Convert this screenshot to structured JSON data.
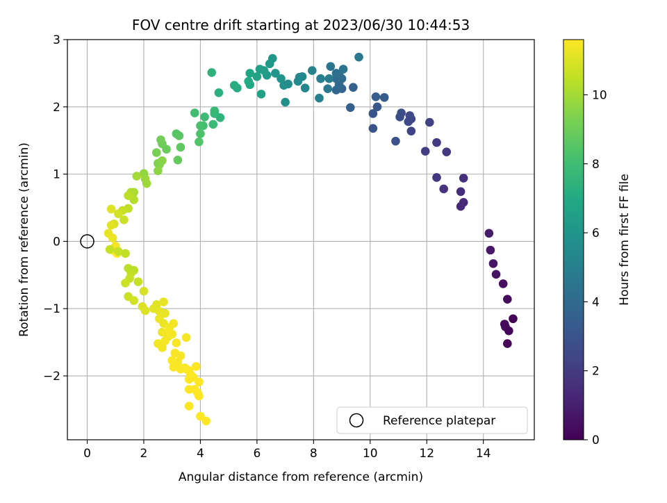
{
  "chart_data": {
    "type": "scatter",
    "title": "FOV centre drift starting at 2023/06/30 10:44:53",
    "xlabel": "Angular distance from reference (arcmin)",
    "ylabel": "Rotation from reference (arcmin)",
    "xlim": [
      -0.7,
      15.8
    ],
    "ylim": [
      -2.95,
      3.0
    ],
    "xticks": [
      0,
      2,
      4,
      6,
      8,
      10,
      12,
      14
    ],
    "yticks": [
      -2,
      -1,
      0,
      1,
      2,
      3
    ],
    "grid": true,
    "legend": {
      "placement": "bottom-right",
      "entries": [
        "Reference platepar"
      ]
    },
    "reference_point": {
      "x": 0,
      "y": 0
    },
    "colorbar": {
      "label": "Hours from first FF file",
      "range": [
        0,
        11.6
      ],
      "ticks": [
        0,
        2,
        4,
        6,
        8,
        10
      ],
      "colormap": "viridis"
    },
    "points": [
      [
        15.05,
        -1.15,
        0.05
      ],
      [
        14.9,
        -1.33,
        0.1
      ],
      [
        14.85,
        -1.52,
        0.15
      ],
      [
        14.78,
        -1.27,
        0.2
      ],
      [
        14.75,
        -1.23,
        0.25
      ],
      [
        14.85,
        -0.86,
        0.35
      ],
      [
        14.7,
        -0.63,
        0.45
      ],
      [
        14.45,
        -0.49,
        0.55
      ],
      [
        14.35,
        -0.33,
        0.65
      ],
      [
        14.25,
        -0.13,
        0.75
      ],
      [
        14.2,
        0.12,
        0.85
      ],
      [
        13.3,
        0.58,
        1.3
      ],
      [
        13.2,
        0.52,
        1.4
      ],
      [
        13.2,
        0.74,
        1.5
      ],
      [
        13.3,
        0.94,
        1.6
      ],
      [
        12.6,
        0.78,
        1.7
      ],
      [
        12.35,
        0.95,
        1.8
      ],
      [
        12.7,
        1.33,
        1.9
      ],
      [
        12.35,
        1.47,
        2.0
      ],
      [
        11.95,
        1.34,
        2.1
      ],
      [
        12.1,
        1.77,
        2.2
      ],
      [
        11.45,
        1.64,
        2.3
      ],
      [
        11.45,
        1.82,
        2.4
      ],
      [
        11.35,
        1.78,
        2.5
      ],
      [
        11.4,
        1.87,
        2.6
      ],
      [
        11.05,
        1.85,
        2.7
      ],
      [
        11.1,
        1.91,
        2.8
      ],
      [
        10.9,
        1.49,
        2.9
      ],
      [
        10.1,
        1.68,
        3.0
      ],
      [
        10.1,
        1.9,
        3.1
      ],
      [
        10.25,
        2.0,
        3.2
      ],
      [
        10.5,
        2.14,
        3.3
      ],
      [
        10.2,
        2.15,
        3.4
      ],
      [
        9.3,
        1.99,
        3.5
      ],
      [
        9.4,
        2.29,
        3.6
      ],
      [
        9.0,
        2.27,
        3.7
      ],
      [
        8.8,
        2.25,
        3.8
      ],
      [
        8.9,
        2.33,
        3.9
      ],
      [
        8.8,
        2.42,
        4.0
      ],
      [
        9.0,
        2.42,
        4.1
      ],
      [
        8.9,
        2.48,
        4.2
      ],
      [
        8.8,
        2.5,
        4.3
      ],
      [
        9.05,
        2.56,
        4.4
      ],
      [
        8.6,
        2.6,
        4.5
      ],
      [
        9.6,
        2.74,
        4.6
      ],
      [
        8.5,
        2.27,
        4.7
      ],
      [
        8.55,
        2.42,
        4.8
      ],
      [
        8.25,
        2.42,
        4.9
      ],
      [
        8.2,
        2.13,
        5.0
      ],
      [
        7.95,
        2.54,
        5.1
      ],
      [
        7.7,
        2.28,
        5.2
      ],
      [
        7.6,
        2.45,
        5.3
      ],
      [
        7.5,
        2.44,
        5.4
      ],
      [
        7.45,
        2.38,
        5.5
      ],
      [
        7.1,
        2.34,
        5.6
      ],
      [
        6.95,
        2.32,
        5.7
      ],
      [
        7.0,
        2.07,
        5.8
      ],
      [
        6.85,
        2.42,
        5.9
      ],
      [
        6.65,
        2.5,
        6.0
      ],
      [
        6.55,
        2.72,
        6.1
      ],
      [
        6.45,
        2.64,
        6.2
      ],
      [
        6.35,
        2.47,
        6.3
      ],
      [
        6.25,
        2.54,
        6.4
      ],
      [
        6.1,
        2.56,
        6.5
      ],
      [
        6.15,
        2.19,
        6.6
      ],
      [
        6.0,
        2.45,
        6.7
      ],
      [
        5.75,
        2.5,
        6.8
      ],
      [
        5.75,
        2.33,
        6.9
      ],
      [
        5.7,
        2.38,
        7.0
      ],
      [
        5.3,
        2.28,
        7.1
      ],
      [
        5.2,
        2.32,
        7.2
      ],
      [
        4.65,
        2.21,
        7.3
      ],
      [
        4.4,
        2.51,
        7.4
      ],
      [
        4.7,
        1.84,
        7.5
      ],
      [
        4.5,
        1.9,
        7.6
      ],
      [
        4.5,
        1.94,
        7.7
      ],
      [
        4.45,
        1.74,
        7.8
      ],
      [
        4.15,
        1.85,
        7.9
      ],
      [
        3.8,
        1.91,
        8.0
      ],
      [
        4.1,
        1.72,
        8.1
      ],
      [
        4.0,
        1.72,
        8.2
      ],
      [
        4.0,
        1.6,
        8.3
      ],
      [
        3.95,
        1.48,
        8.4
      ],
      [
        3.15,
        1.6,
        8.5
      ],
      [
        3.25,
        1.57,
        8.6
      ],
      [
        3.3,
        1.4,
        8.7
      ],
      [
        3.2,
        1.21,
        8.8
      ],
      [
        2.8,
        1.37,
        8.9
      ],
      [
        2.65,
        1.45,
        9.0
      ],
      [
        2.6,
        1.51,
        9.1
      ],
      [
        2.45,
        1.32,
        9.2
      ],
      [
        2.5,
        1.16,
        9.3
      ],
      [
        2.55,
        1.14,
        9.4
      ],
      [
        2.65,
        1.2,
        9.5
      ],
      [
        2.5,
        1.05,
        9.6
      ],
      [
        2.0,
        1.01,
        9.7
      ],
      [
        2.05,
        0.93,
        9.8
      ],
      [
        2.1,
        0.86,
        9.9
      ],
      [
        1.75,
        0.97,
        10.0
      ],
      [
        1.65,
        0.73,
        10.1
      ],
      [
        1.55,
        0.73,
        10.2
      ],
      [
        1.65,
        0.62,
        10.3
      ],
      [
        1.45,
        0.68,
        10.4
      ],
      [
        1.45,
        0.49,
        10.5
      ],
      [
        1.25,
        0.46,
        10.6
      ],
      [
        1.3,
        0.32,
        10.7
      ],
      [
        1.1,
        0.41,
        10.8
      ],
      [
        0.95,
        0.26,
        10.9
      ],
      [
        0.85,
        0.48,
        11.0
      ],
      [
        0.85,
        0.24,
        11.1
      ],
      [
        0.75,
        0.12,
        11.2
      ],
      [
        0.9,
        0.05,
        11.3
      ],
      [
        1.0,
        -0.07,
        11.4
      ],
      [
        0.9,
        -0.13,
        11.5
      ],
      [
        1.05,
        -0.18,
        11.6
      ],
      [
        0.8,
        -0.12,
        10.6
      ],
      [
        1.1,
        -0.15,
        10.6
      ],
      [
        1.35,
        -0.18,
        10.5
      ],
      [
        1.45,
        -0.4,
        10.4
      ],
      [
        1.65,
        -0.43,
        10.4
      ],
      [
        1.55,
        -0.47,
        10.5
      ],
      [
        1.5,
        -0.55,
        10.6
      ],
      [
        1.35,
        -0.62,
        10.7
      ],
      [
        1.45,
        -0.82,
        10.7
      ],
      [
        1.65,
        -0.88,
        10.8
      ],
      [
        1.8,
        -0.6,
        10.6
      ],
      [
        2.0,
        -0.74,
        10.9
      ],
      [
        1.95,
        -0.97,
        11.0
      ],
      [
        2.05,
        -1.03,
        11.0
      ],
      [
        2.35,
        -1.0,
        11.1
      ],
      [
        2.45,
        -0.94,
        11.1
      ],
      [
        2.55,
        -1.04,
        11.2
      ],
      [
        2.7,
        -0.9,
        11.2
      ],
      [
        2.75,
        -1.07,
        11.2
      ],
      [
        2.7,
        -1.22,
        11.3
      ],
      [
        2.55,
        -1.15,
        11.3
      ],
      [
        2.65,
        -1.35,
        11.3
      ],
      [
        2.8,
        -1.36,
        11.4
      ],
      [
        2.85,
        -1.42,
        11.4
      ],
      [
        2.9,
        -1.28,
        11.4
      ],
      [
        3.0,
        -1.38,
        11.4
      ],
      [
        3.05,
        -1.22,
        11.45
      ],
      [
        2.5,
        -1.52,
        11.4
      ],
      [
        2.65,
        -1.58,
        11.4
      ],
      [
        2.75,
        -1.48,
        11.45
      ],
      [
        3.15,
        -1.51,
        11.5
      ],
      [
        3.5,
        -1.43,
        11.5
      ],
      [
        3.1,
        -1.66,
        11.5
      ],
      [
        3.3,
        -1.7,
        11.5
      ],
      [
        3.2,
        -1.8,
        11.5
      ],
      [
        3.0,
        -1.77,
        11.55
      ],
      [
        3.05,
        -1.87,
        11.55
      ],
      [
        3.3,
        -1.9,
        11.55
      ],
      [
        3.45,
        -1.88,
        11.55
      ],
      [
        3.5,
        -1.9,
        11.55
      ],
      [
        3.6,
        -1.92,
        11.6
      ],
      [
        3.65,
        -1.98,
        11.6
      ],
      [
        3.6,
        -2.05,
        11.6
      ],
      [
        3.75,
        -2.02,
        11.6
      ],
      [
        3.85,
        -1.86,
        11.6
      ],
      [
        3.95,
        -2.09,
        11.6
      ],
      [
        3.8,
        -2.2,
        11.6
      ],
      [
        3.9,
        -2.25,
        11.6
      ],
      [
        3.95,
        -2.3,
        11.6
      ],
      [
        3.6,
        -2.2,
        11.6
      ],
      [
        3.6,
        -2.45,
        11.6
      ],
      [
        4.0,
        -2.6,
        11.6
      ],
      [
        4.2,
        -2.67,
        11.6
      ]
    ]
  }
}
